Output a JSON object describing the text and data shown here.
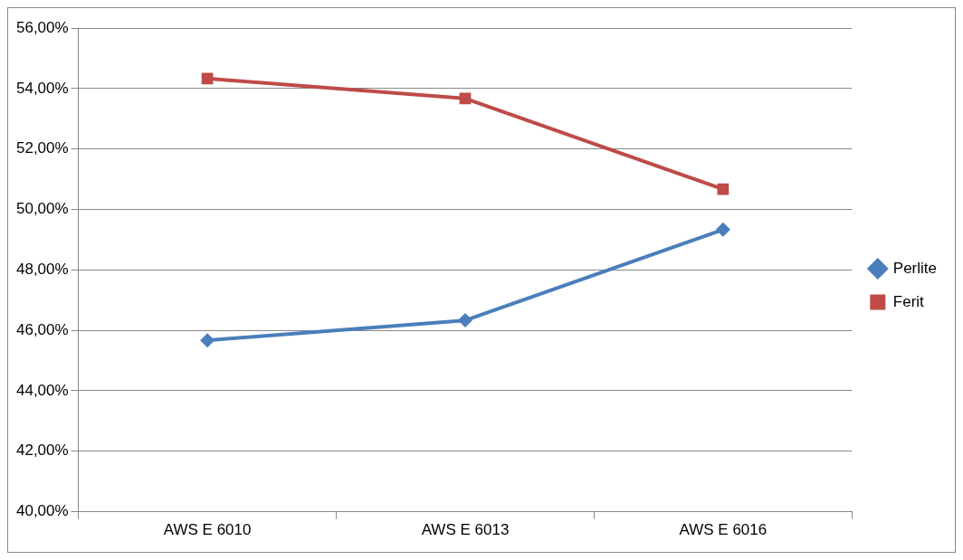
{
  "chart_data": {
    "type": "line",
    "categories": [
      "AWS E 6010",
      "AWS E 6013",
      "AWS E 6016"
    ],
    "series": [
      {
        "name": "Perlite",
        "color": "#4a7ebb",
        "marker": "diamond",
        "values": [
          45.67,
          46.33,
          49.33
        ]
      },
      {
        "name": "Ferit",
        "color": "#be4b48",
        "marker": "square",
        "values": [
          54.33,
          53.67,
          50.67
        ]
      }
    ],
    "ylim": [
      40,
      56
    ],
    "yticks": [
      {
        "value": 40,
        "label": "40,00%"
      },
      {
        "value": 42,
        "label": "42,00%"
      },
      {
        "value": 44,
        "label": "44,00%"
      },
      {
        "value": 46,
        "label": "46,00%"
      },
      {
        "value": 48,
        "label": "48,00%"
      },
      {
        "value": 50,
        "label": "50,00%"
      },
      {
        "value": 52,
        "label": "52,00%"
      },
      {
        "value": 54,
        "label": "54,00%"
      },
      {
        "value": 56,
        "label": "56,00%"
      }
    ],
    "grid": "y",
    "legend": "right",
    "line_style": "solid"
  }
}
